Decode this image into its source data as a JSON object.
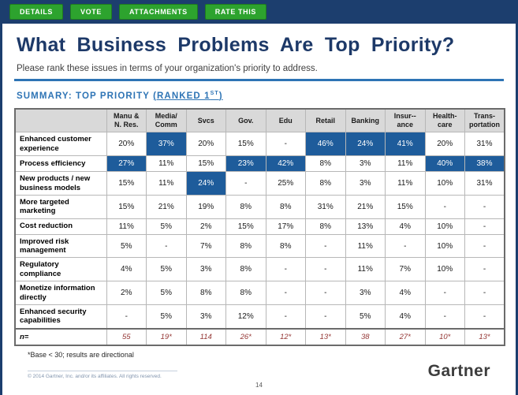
{
  "toolbar": {
    "buttons": [
      "DETAILS",
      "VOTE",
      "ATTACHMENTS",
      "RATE THIS"
    ]
  },
  "header": {
    "title": "What Business Problems Are Top Priority?",
    "subtitle": "Please rank these issues in terms of your organization's priority to address."
  },
  "summary": {
    "label": "SUMMARY:  TOP PRIORITY",
    "ranked_pre": "(RANKED 1",
    "ranked_sup": "ST",
    "ranked_post": ")"
  },
  "colors": {
    "toolbar_bg": "#1c3e6e",
    "button_green": "#2da32e",
    "title_blue": "#1d3968",
    "rule_blue": "#2e74b5",
    "highlight_cell": "#1e5c9b",
    "header_gray": "#d9d9d9",
    "n_row_maroon": "#943634"
  },
  "chart_data": {
    "type": "table",
    "title": "What Business Problems Are Top Priority?",
    "columns": [
      "Manu &\nN. Res.",
      "Media/\nComm",
      "Svcs",
      "Gov.",
      "Edu",
      "Retail",
      "Banking",
      "Insur--\nance",
      "Health-\ncare",
      "Trans-\nportation"
    ],
    "rows": [
      {
        "label": "Enhanced customer experience",
        "values": [
          "20%",
          "37%",
          "20%",
          "15%",
          "-",
          "46%",
          "24%",
          "41%",
          "20%",
          "31%"
        ],
        "highlights": [
          1,
          5,
          6,
          7
        ]
      },
      {
        "label": "Process efficiency",
        "values": [
          "27%",
          "11%",
          "15%",
          "23%",
          "42%",
          "8%",
          "3%",
          "11%",
          "40%",
          "38%"
        ],
        "highlights": [
          0,
          3,
          4,
          8,
          9
        ]
      },
      {
        "label": "New products / new business models",
        "values": [
          "15%",
          "11%",
          "24%",
          "-",
          "25%",
          "8%",
          "3%",
          "11%",
          "10%",
          "31%"
        ],
        "highlights": [
          2
        ]
      },
      {
        "label": "More targeted marketing",
        "values": [
          "15%",
          "21%",
          "19%",
          "8%",
          "8%",
          "31%",
          "21%",
          "15%",
          "-",
          "-"
        ],
        "highlights": []
      },
      {
        "label": "Cost reduction",
        "values": [
          "11%",
          "5%",
          "2%",
          "15%",
          "17%",
          "8%",
          "13%",
          "4%",
          "10%",
          "-"
        ],
        "highlights": []
      },
      {
        "label": "Improved risk management",
        "values": [
          "5%",
          "-",
          "7%",
          "8%",
          "8%",
          "-",
          "11%",
          "-",
          "10%",
          "-"
        ],
        "highlights": []
      },
      {
        "label": "Regulatory compliance",
        "values": [
          "4%",
          "5%",
          "3%",
          "8%",
          "-",
          "-",
          "11%",
          "7%",
          "10%",
          "-"
        ],
        "highlights": []
      },
      {
        "label": "Monetize information directly",
        "values": [
          "2%",
          "5%",
          "8%",
          "8%",
          "-",
          "-",
          "3%",
          "4%",
          "-",
          "-"
        ],
        "highlights": []
      },
      {
        "label": "Enhanced security capabilities",
        "values": [
          "-",
          "5%",
          "3%",
          "12%",
          "-",
          "-",
          "5%",
          "4%",
          "-",
          "-"
        ],
        "highlights": []
      }
    ],
    "n_row": {
      "label": "n=",
      "values": [
        "55",
        "19*",
        "114",
        "26*",
        "12*",
        "13*",
        "38",
        "27*",
        "10*",
        "13*"
      ]
    }
  },
  "footer": {
    "note": "*Base < 30; results are directional",
    "copyright": "© 2014 Gartner, Inc. and/or its affiliates.  All rights reserved.",
    "brand": "Gartner",
    "page": "14"
  }
}
